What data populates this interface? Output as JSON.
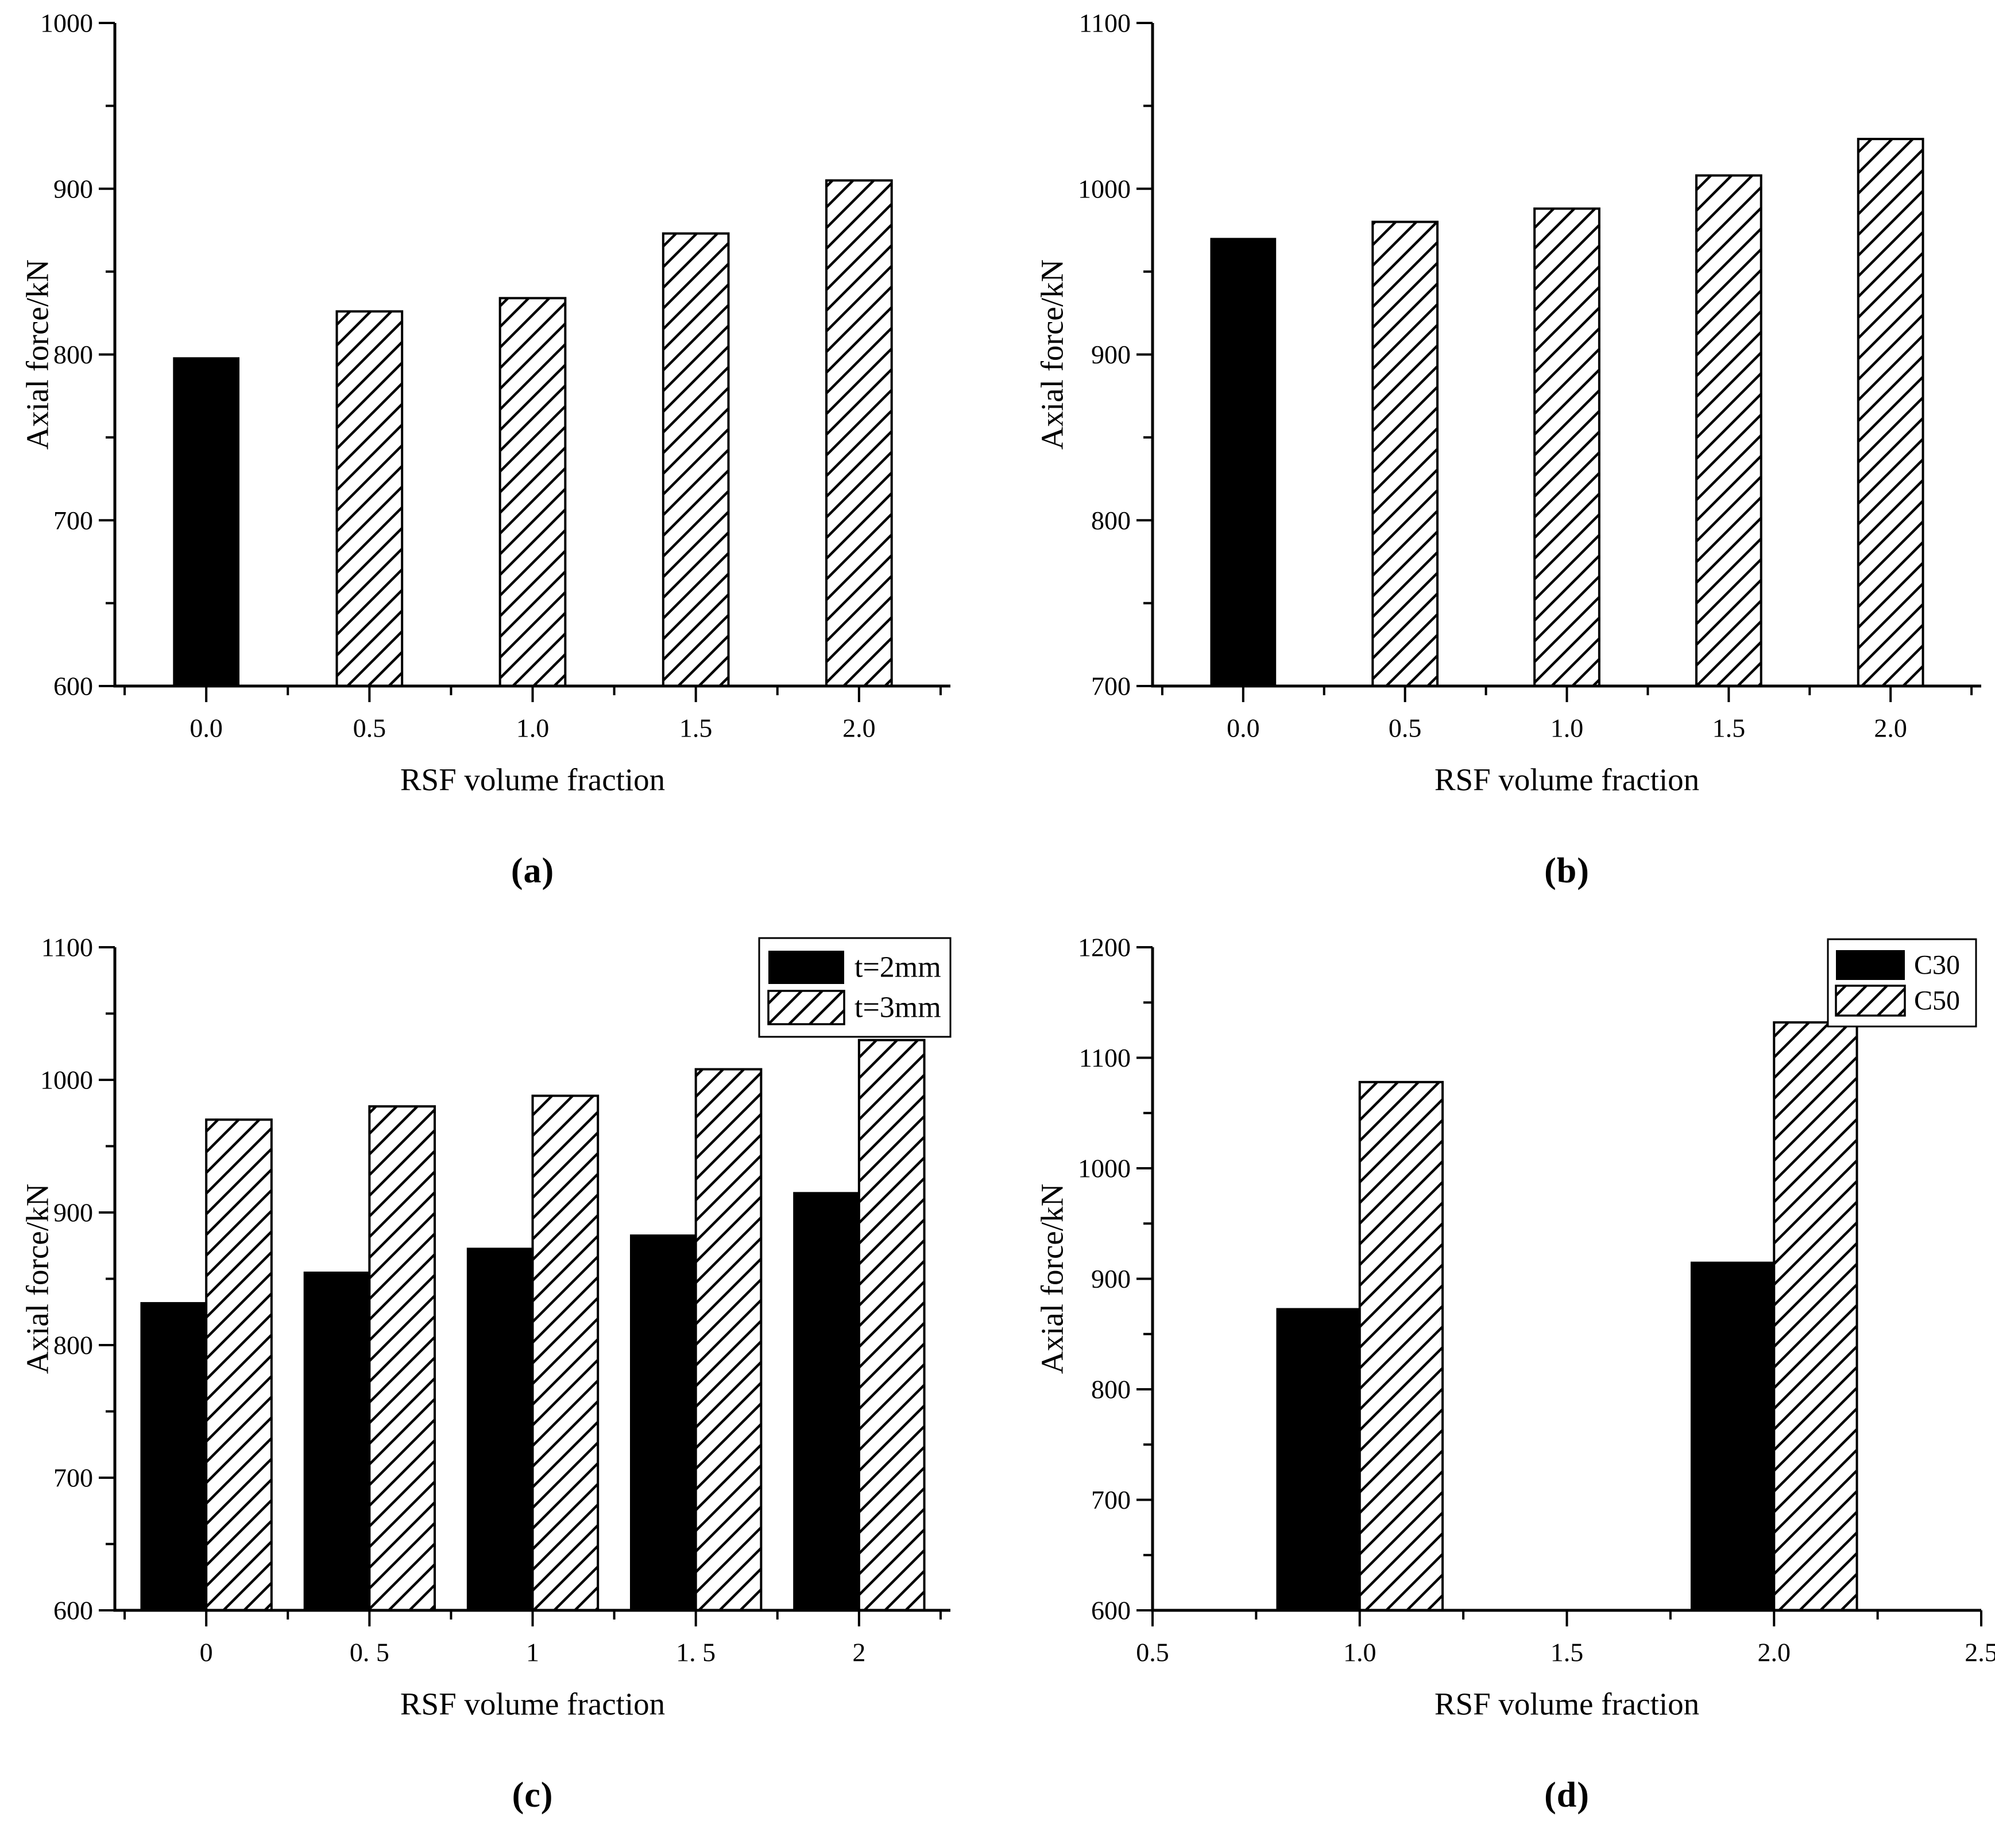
{
  "figure": {
    "background": "#ffffff",
    "ink_color": "#000000",
    "bar_solid_fill": "#000000",
    "bar_hatch_bg": "#ffffff"
  },
  "chart_data": [
    {
      "type": "bar",
      "panel_label": "(a)",
      "title": "",
      "xlabel": "RSF volume fraction",
      "ylabel": "Axial force/kN",
      "ylim": [
        600,
        1000
      ],
      "ytick_step": 100,
      "yminor_step": 50,
      "xlim": [
        -0.28,
        2.28
      ],
      "xtick_values": [
        0,
        0.5,
        1,
        1.5,
        2
      ],
      "xtick_labels": [
        "0.0",
        "0.5",
        "1.0",
        "1.5",
        "2.0"
      ],
      "xminor_values": [
        -0.25,
        0.25,
        0.75,
        1.25,
        1.75,
        2.25
      ],
      "bar_width": 0.2,
      "grid": false,
      "legend": null,
      "series": [
        {
          "name": "",
          "offset": -0.1,
          "x": [
            0,
            0.5,
            1,
            1.5,
            2
          ],
          "values": [
            798,
            826,
            834,
            873,
            905
          ],
          "bar_styles": [
            "solid",
            "hatch",
            "hatch",
            "hatch",
            "hatch"
          ]
        }
      ]
    },
    {
      "type": "bar",
      "panel_label": "(b)",
      "title": "",
      "xlabel": "RSF volume fraction",
      "ylabel": "Axial force/kN",
      "ylim": [
        700,
        1100
      ],
      "ytick_step": 100,
      "yminor_step": 50,
      "xlim": [
        -0.28,
        2.28
      ],
      "xtick_values": [
        0,
        0.5,
        1,
        1.5,
        2
      ],
      "xtick_labels": [
        "0.0",
        "0.5",
        "1.0",
        "1.5",
        "2.0"
      ],
      "xminor_values": [
        -0.25,
        0.25,
        0.75,
        1.25,
        1.75,
        2.25
      ],
      "bar_width": 0.2,
      "grid": false,
      "legend": null,
      "series": [
        {
          "name": "",
          "offset": -0.1,
          "x": [
            0,
            0.5,
            1,
            1.5,
            2
          ],
          "values": [
            970,
            980,
            988,
            1008,
            1030
          ],
          "bar_styles": [
            "solid",
            "hatch",
            "hatch",
            "hatch",
            "hatch"
          ]
        }
      ]
    },
    {
      "type": "bar",
      "panel_label": "(c)",
      "title": "",
      "xlabel": "RSF volume fraction",
      "ylabel": "Axial force/kN",
      "ylim": [
        600,
        1100
      ],
      "ytick_step": 100,
      "yminor_step": 50,
      "xlim": [
        -0.28,
        2.28
      ],
      "xtick_values": [
        0,
        0.5,
        1,
        1.5,
        2
      ],
      "xtick_labels": [
        "0",
        "0. 5",
        "1",
        "1. 5",
        "2"
      ],
      "xminor_values": [
        -0.25,
        0.25,
        0.75,
        1.25,
        1.75,
        2.25
      ],
      "bar_width": 0.2,
      "grid": false,
      "legend": {
        "position": "top-right",
        "entries": [
          "t=2mm",
          "t=3mm"
        ],
        "entry_styles": [
          "solid",
          "hatch"
        ]
      },
      "series": [
        {
          "name": "t=2mm",
          "offset": -0.2,
          "x": [
            0,
            0.5,
            1,
            1.5,
            2
          ],
          "values": [
            832,
            855,
            873,
            883,
            915
          ],
          "bar_styles": [
            "solid",
            "solid",
            "solid",
            "solid",
            "solid"
          ]
        },
        {
          "name": "t=3mm",
          "offset": 0,
          "x": [
            0,
            0.5,
            1,
            1.5,
            2
          ],
          "values": [
            970,
            980,
            988,
            1008,
            1030
          ],
          "bar_styles": [
            "hatch",
            "hatch",
            "hatch",
            "hatch",
            "hatch"
          ]
        }
      ]
    },
    {
      "type": "bar",
      "panel_label": "(d)",
      "title": "",
      "xlabel": "RSF volume fraction",
      "ylabel": "Axial force/kN",
      "ylim": [
        600,
        1200
      ],
      "ytick_step": 100,
      "yminor_step": 50,
      "xlim": [
        0.5,
        2.5
      ],
      "xtick_values": [
        0.5,
        1,
        1.5,
        2,
        2.5
      ],
      "xtick_labels": [
        "0.5",
        "1.0",
        "1.5",
        "2.0",
        "2.5"
      ],
      "xminor_values": [
        0.75,
        1.25,
        1.75,
        2.25
      ],
      "bar_width": 0.2,
      "grid": false,
      "legend": {
        "position": "top-right",
        "entries": [
          "C30",
          "C50"
        ],
        "entry_styles": [
          "solid",
          "hatch"
        ]
      },
      "series": [
        {
          "name": "C30",
          "offset": -0.2,
          "x": [
            1,
            2
          ],
          "values": [
            873,
            915
          ],
          "bar_styles": [
            "solid",
            "solid"
          ]
        },
        {
          "name": "C50",
          "offset": 0,
          "x": [
            1,
            2
          ],
          "values": [
            1078,
            1132
          ],
          "bar_styles": [
            "hatch",
            "hatch"
          ]
        }
      ]
    }
  ]
}
